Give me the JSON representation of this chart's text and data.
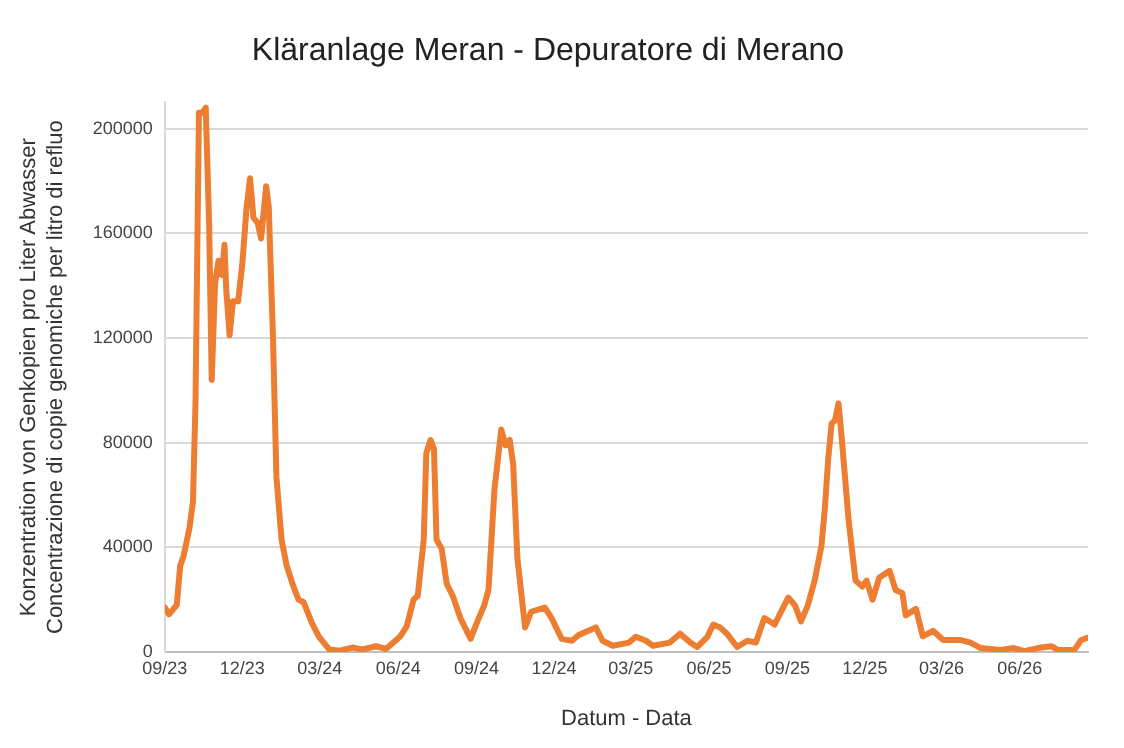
{
  "chart_data": {
    "type": "line",
    "title": "Kläranlage Meran - Depuratore di Merano",
    "xlabel": "Datum - Data",
    "ylabel": "Konzentration von Genkopien pro Liter Abwasser\nConcentrazione di copie genomiche per litro di refluo",
    "x": [
      "2023-09-01",
      "2023-09-06",
      "2023-09-15",
      "2023-09-19",
      "2023-09-23",
      "2023-09-30",
      "2023-10-04",
      "2023-10-07",
      "2023-10-11",
      "2023-10-15",
      "2023-10-19",
      "2023-10-23",
      "2023-10-26",
      "2023-10-30",
      "2023-11-03",
      "2023-11-07",
      "2023-11-10",
      "2023-11-12",
      "2023-11-16",
      "2023-11-20",
      "2023-11-26",
      "2023-12-01",
      "2023-12-06",
      "2023-12-10",
      "2023-12-14",
      "2023-12-19",
      "2023-12-23",
      "2023-12-29",
      "2024-01-01",
      "2024-01-06",
      "2024-01-10",
      "2024-01-16",
      "2024-01-22",
      "2024-01-30",
      "2024-02-05",
      "2024-02-11",
      "2024-02-21",
      "2024-02-29",
      "2024-03-12",
      "2024-03-24",
      "2024-04-08",
      "2024-04-20",
      "2024-05-06",
      "2024-05-18",
      "2024-06-03",
      "2024-06-11",
      "2024-06-19",
      "2024-06-24",
      "2024-07-01",
      "2024-07-04",
      "2024-07-09",
      "2024-07-13",
      "2024-07-16",
      "2024-07-22",
      "2024-07-28",
      "2024-08-04",
      "2024-08-13",
      "2024-08-25",
      "2024-09-02",
      "2024-09-10",
      "2024-09-15",
      "2024-09-22",
      "2024-09-30",
      "2024-10-05",
      "2024-10-10",
      "2024-10-14",
      "2024-10-19",
      "2024-10-28",
      "2024-11-04",
      "2024-11-20",
      "2024-11-28",
      "2024-12-10",
      "2024-12-22",
      "2024-12-30",
      "2025-01-19",
      "2025-01-27",
      "2025-02-08",
      "2025-02-27",
      "2025-03-07",
      "2025-03-19",
      "2025-03-27",
      "2025-04-16",
      "2025-04-28",
      "2025-05-10",
      "2025-05-18",
      "2025-05-30",
      "2025-06-06",
      "2025-06-14",
      "2025-06-22",
      "2025-07-04",
      "2025-07-16",
      "2025-07-26",
      "2025-08-05",
      "2025-08-17",
      "2025-09-02",
      "2025-09-10",
      "2025-09-17",
      "2025-09-25",
      "2025-10-03",
      "2025-10-11",
      "2025-10-15",
      "2025-10-19",
      "2025-10-23",
      "2025-10-27",
      "2025-10-31",
      "2025-11-04",
      "2025-11-12",
      "2025-11-20",
      "2025-11-28",
      "2025-12-03",
      "2025-12-10",
      "2025-12-18",
      "2025-12-30",
      "2026-01-06",
      "2026-01-14",
      "2026-01-18",
      "2026-01-30",
      "2026-02-07",
      "2026-02-19",
      "2026-03-03",
      "2026-03-23",
      "2026-04-04",
      "2026-04-16",
      "2026-05-09",
      "2026-05-25",
      "2026-06-06",
      "2026-06-22",
      "2026-07-08",
      "2026-07-16",
      "2026-08-04",
      "2026-08-12",
      "2026-08-19"
    ],
    "series": [
      {
        "color": "#ed7d31",
        "values": [
          17000,
          14400,
          18000,
          33000,
          36700,
          47500,
          57500,
          95700,
          206000,
          206000,
          208000,
          163000,
          104000,
          141000,
          149500,
          144000,
          155600,
          139000,
          121000,
          134000,
          134000,
          148500,
          170000,
          181000,
          166000,
          164000,
          158000,
          178000,
          170000,
          119600,
          67000,
          43000,
          33000,
          25000,
          20000,
          19000,
          10800,
          5800,
          1000,
          500,
          1700,
          1000,
          2200,
          1200,
          5800,
          9800,
          20000,
          21500,
          43000,
          76000,
          81000,
          77600,
          43000,
          39500,
          26000,
          21500,
          13000,
          5000,
          11700,
          17800,
          23700,
          62000,
          85000,
          79000,
          81000,
          71700,
          35700,
          9400,
          15300,
          17000,
          13000,
          5000,
          4300,
          6500,
          9400,
          4300,
          2400,
          3600,
          5800,
          4300,
          2400,
          3600,
          7000,
          3600,
          1900,
          5800,
          10500,
          9400,
          7000,
          1900,
          4300,
          3600,
          13000,
          10500,
          20800,
          17800,
          11700,
          17800,
          27300,
          40500,
          54900,
          74000,
          87300,
          88500,
          95000,
          81000,
          50000,
          27300,
          25000,
          27300,
          20000,
          28500,
          31000,
          23700,
          22500,
          14000,
          16500,
          6000,
          8100,
          4600,
          4600,
          3600,
          1500,
          800,
          1500,
          300,
          1500,
          2200,
          800,
          800,
          4600,
          5400
        ]
      }
    ],
    "xlim": [
      "2023-09-01",
      "2026-08-20"
    ],
    "xticks": [
      {
        "value": "2023-09-01",
        "label": "09/23"
      },
      {
        "value": "2023-12-01",
        "label": "12/23"
      },
      {
        "value": "2024-03-01",
        "label": "03/24"
      },
      {
        "value": "2024-06-01",
        "label": "06/24"
      },
      {
        "value": "2024-09-01",
        "label": "09/24"
      },
      {
        "value": "2024-12-01",
        "label": "12/24"
      },
      {
        "value": "2025-03-01",
        "label": "03/25"
      },
      {
        "value": "2025-06-01",
        "label": "06/25"
      },
      {
        "value": "2025-09-01",
        "label": "09/25"
      },
      {
        "value": "2025-12-01",
        "label": "12/25"
      },
      {
        "value": "2026-03-01",
        "label": "03/26"
      },
      {
        "value": "2026-06-01",
        "label": "06/26"
      }
    ],
    "ylim": [
      0,
      210000
    ],
    "yticks": [
      0,
      40000,
      80000,
      120000,
      160000,
      200000
    ],
    "grid": "y",
    "legend": false,
    "marker": "none",
    "line_style": "solid"
  }
}
